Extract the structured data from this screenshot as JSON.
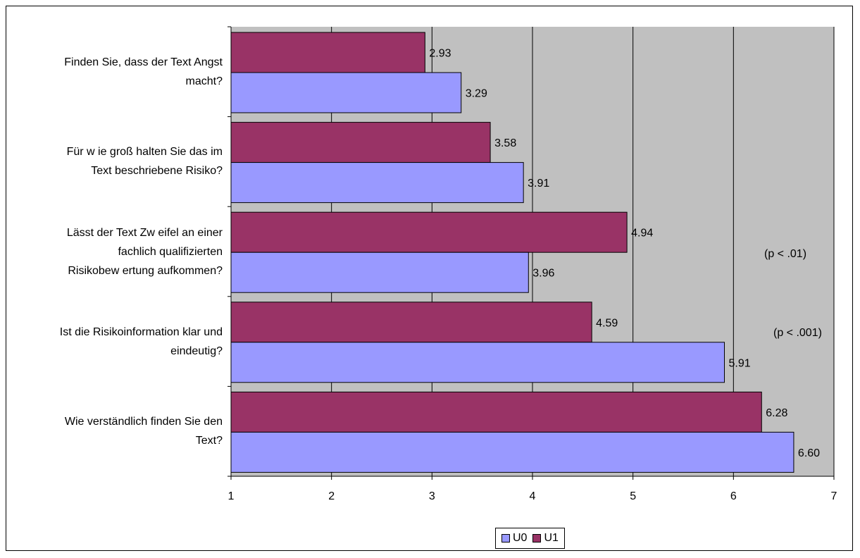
{
  "chart_data": {
    "type": "bar",
    "orientation": "horizontal",
    "categories": [
      "Finden Sie, dass der Text Angst macht?",
      "Für w ie groß halten Sie das im Text beschriebene Risiko?",
      "Lässt der Text Zw eifel an einer fachlich qualifizierten Risikobew ertung aufkommen?",
      "Ist die Risikoinformation klar und eindeutig?",
      "Wie verständlich finden Sie den Text?"
    ],
    "category_lines": [
      [
        "Finden Sie, dass der Text Angst",
        "macht?"
      ],
      [
        "Für w ie groß halten Sie das im",
        "Text beschriebene Risiko?"
      ],
      [
        "Lässt der Text  Zw eifel an einer",
        "fachlich qualifizierten",
        "Risikobew ertung aufkommen?"
      ],
      [
        "Ist die  Risikoinformation klar und",
        "eindeutig?"
      ],
      [
        "Wie verständlich finden Sie den",
        "Text?"
      ]
    ],
    "series": [
      {
        "name": "U1",
        "values": [
          2.93,
          3.58,
          4.94,
          4.59,
          6.28
        ],
        "labels": [
          "2.93",
          "3.58",
          "4.94",
          "4.59",
          "6.28"
        ],
        "color": "#993366"
      },
      {
        "name": "U0",
        "values": [
          3.29,
          3.91,
          3.96,
          5.91,
          6.6
        ],
        "labels": [
          "3.29",
          "3.91",
          "3.96",
          "5.91",
          "6.60"
        ],
        "color": "#9999FF"
      }
    ],
    "xlim": [
      1,
      7
    ],
    "xticks": [
      "1",
      "2",
      "3",
      "4",
      "5",
      "6",
      "7"
    ],
    "annotations": [
      "(p < .01)",
      "(p < .001)"
    ],
    "legend": {
      "position": "bottom",
      "entries": [
        "U0",
        "U1"
      ]
    },
    "grid": true,
    "plot_background": "#C0C0C0",
    "title": "",
    "xlabel": "",
    "ylabel": ""
  }
}
